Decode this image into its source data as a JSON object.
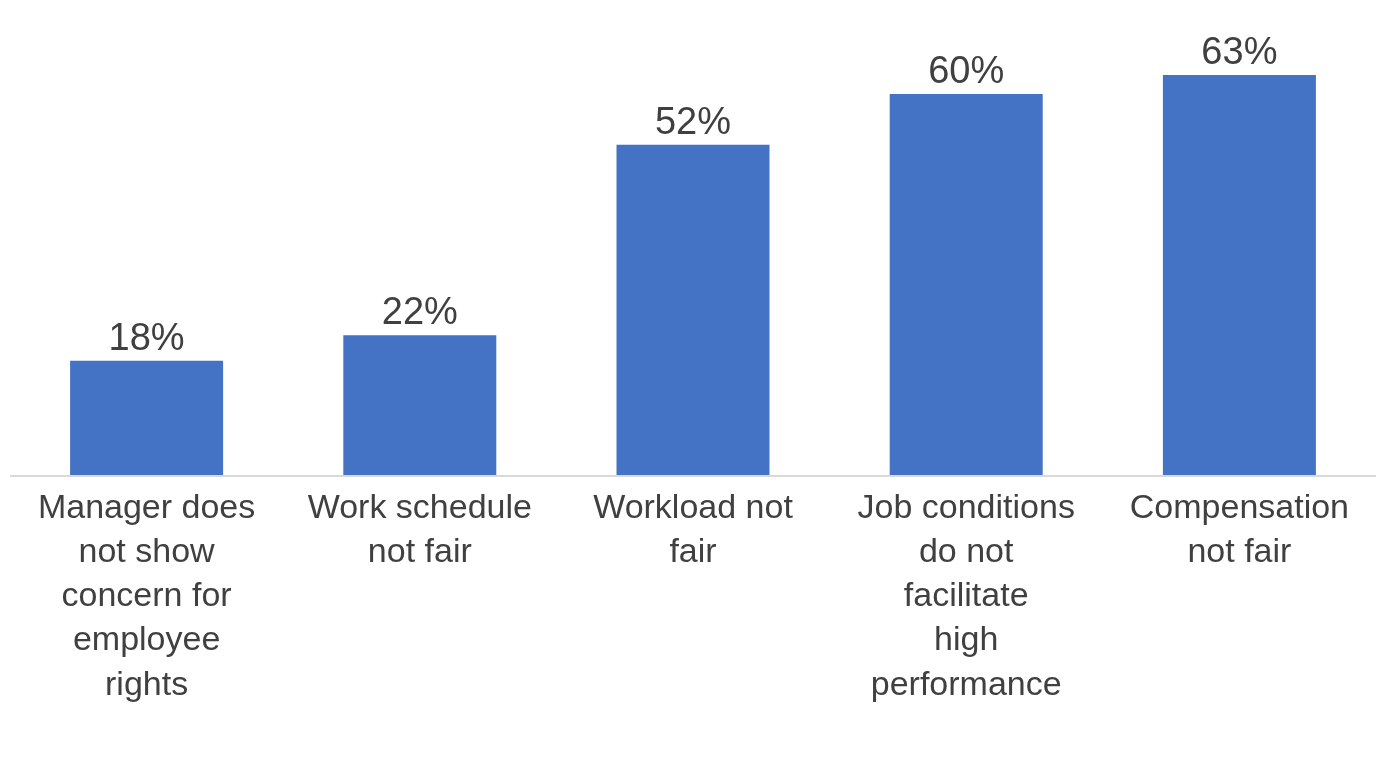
{
  "chart_data": {
    "type": "bar",
    "categories": [
      "Manager does not show concern for employee rights",
      "Work schedule not fair",
      "Workload not fair",
      "Job conditions do not facilitate high performance",
      "Compensation not fair"
    ],
    "values": [
      18,
      22,
      52,
      60,
      63
    ],
    "value_labels": [
      "18%",
      "22%",
      "52%",
      "60%",
      "63%"
    ],
    "color": "#4472c4"
  }
}
